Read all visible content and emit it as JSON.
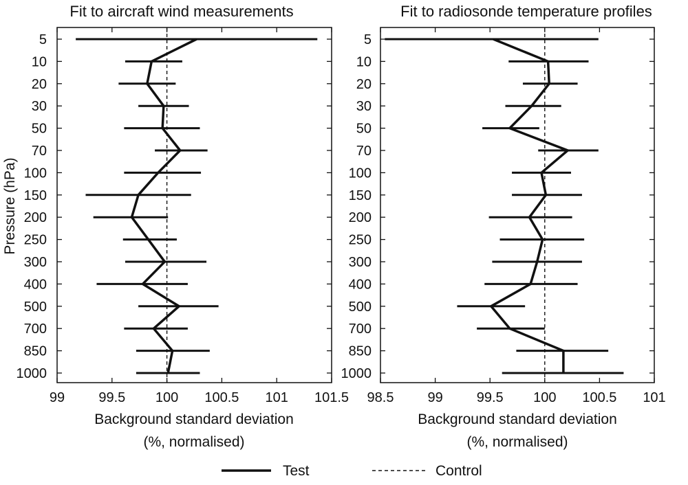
{
  "figure": {
    "ylabel": "Pressure (hPa)",
    "legend": {
      "position": "bottom-center",
      "entries": [
        {
          "label": "Test",
          "style": "solid"
        },
        {
          "label": "Control",
          "style": "dashed"
        }
      ]
    }
  },
  "chart_data": [
    {
      "type": "line",
      "title": "Fit to aircraft wind measurements",
      "xlabel": [
        "Background standard deviation",
        "(%, normalised)"
      ],
      "ylabel": "Pressure (hPa)",
      "xlim": [
        99,
        101.5
      ],
      "xticks": [
        99,
        99.5,
        100,
        100.5,
        101,
        101.5
      ],
      "xtick_labels": [
        "99",
        "99.5",
        "100",
        "100.5",
        "101",
        "101.5"
      ],
      "control_value": 100,
      "y_categories": [
        "5",
        "10",
        "20",
        "30",
        "50",
        "70",
        "100",
        "150",
        "200",
        "250",
        "300",
        "400",
        "500",
        "700",
        "850",
        "1000"
      ],
      "series": [
        {
          "name": "Test",
          "values": [
            100.27,
            99.86,
            99.82,
            99.97,
            99.96,
            100.12,
            99.92,
            99.74,
            99.68,
            99.83,
            99.98,
            99.78,
            100.11,
            99.88,
            100.05,
            100.01
          ],
          "error_low": [
            99.17,
            99.62,
            99.56,
            99.74,
            99.61,
            99.89,
            99.61,
            99.26,
            99.33,
            99.6,
            99.62,
            99.36,
            99.74,
            99.61,
            99.72,
            99.72
          ],
          "error_high": [
            101.37,
            100.14,
            100.08,
            100.2,
            100.3,
            100.37,
            100.31,
            100.22,
            100.01,
            100.09,
            100.36,
            100.19,
            100.47,
            100.19,
            100.39,
            100.3
          ]
        }
      ]
    },
    {
      "type": "line",
      "title": "Fit to radiosonde temperature profiles",
      "xlabel": [
        "Background standard deviation",
        "(%, normalised)"
      ],
      "ylabel": "",
      "xlim": [
        98.5,
        101
      ],
      "xticks": [
        98.5,
        99,
        99.5,
        100,
        100.5,
        101
      ],
      "xtick_labels": [
        "98.5",
        "99",
        "99.5",
        "100",
        "100.5",
        "101"
      ],
      "control_value": 100,
      "y_categories": [
        "5",
        "10",
        "20",
        "30",
        "50",
        "70",
        "100",
        "150",
        "200",
        "250",
        "300",
        "400",
        "500",
        "700",
        "850",
        "1000"
      ],
      "series": [
        {
          "name": "Test",
          "values": [
            99.53,
            100.03,
            100.04,
            99.88,
            99.68,
            100.21,
            99.97,
            100.01,
            99.86,
            99.98,
            99.93,
            99.87,
            99.51,
            99.68,
            100.17,
            100.17
          ],
          "error_low": [
            98.54,
            99.67,
            99.8,
            99.64,
            99.43,
            99.94,
            99.7,
            99.7,
            99.49,
            99.59,
            99.52,
            99.45,
            99.2,
            99.38,
            99.74,
            99.61
          ],
          "error_high": [
            100.49,
            100.4,
            100.3,
            100.15,
            99.95,
            100.49,
            100.24,
            100.34,
            100.25,
            100.36,
            100.34,
            100.3,
            99.82,
            100.0,
            100.58,
            100.72
          ]
        }
      ]
    }
  ]
}
